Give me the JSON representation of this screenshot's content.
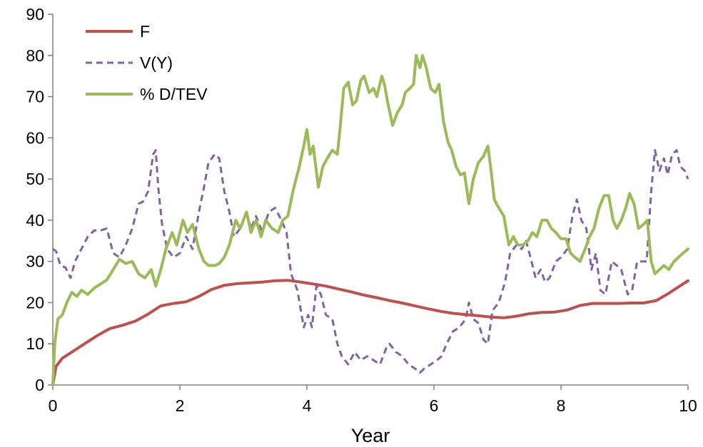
{
  "chart_data": {
    "type": "line",
    "title": "",
    "xlabel": "Year",
    "ylabel": "",
    "xlim": [
      0,
      10
    ],
    "ylim": [
      0,
      90
    ],
    "xticks": [
      0,
      2,
      4,
      6,
      8,
      10
    ],
    "yticks": [
      0,
      10,
      20,
      30,
      40,
      50,
      60,
      70,
      80,
      90
    ],
    "grid": false,
    "legend_position": "top-left",
    "series": [
      {
        "name": "F",
        "color": "#c0504d",
        "style": "solid",
        "points": [
          [
            0,
            0
          ],
          [
            0.05,
            4.5
          ],
          [
            0.15,
            6.5
          ],
          [
            0.3,
            8
          ],
          [
            0.5,
            10
          ],
          [
            0.7,
            12
          ],
          [
            0.9,
            13.7
          ],
          [
            1.1,
            14.5
          ],
          [
            1.3,
            15.5
          ],
          [
            1.5,
            17.2
          ],
          [
            1.7,
            19.2
          ],
          [
            1.9,
            19.8
          ],
          [
            2.1,
            20.2
          ],
          [
            2.3,
            21.5
          ],
          [
            2.5,
            23.2
          ],
          [
            2.7,
            24.2
          ],
          [
            2.9,
            24.6
          ],
          [
            3.1,
            24.8
          ],
          [
            3.3,
            25
          ],
          [
            3.5,
            25.3
          ],
          [
            3.7,
            25.4
          ],
          [
            3.9,
            25
          ],
          [
            4.1,
            24.5
          ],
          [
            4.3,
            24
          ],
          [
            4.5,
            23.3
          ],
          [
            4.7,
            22.6
          ],
          [
            4.9,
            21.8
          ],
          [
            5.1,
            21.2
          ],
          [
            5.3,
            20.5
          ],
          [
            5.5,
            19.9
          ],
          [
            5.7,
            19.2
          ],
          [
            5.9,
            18.5
          ],
          [
            6.1,
            17.9
          ],
          [
            6.3,
            17.4
          ],
          [
            6.5,
            17.1
          ],
          [
            6.7,
            16.8
          ],
          [
            6.9,
            16.5
          ],
          [
            7.1,
            16.3
          ],
          [
            7.3,
            16.7
          ],
          [
            7.5,
            17.3
          ],
          [
            7.7,
            17.6
          ],
          [
            7.9,
            17.7
          ],
          [
            8.1,
            18.2
          ],
          [
            8.3,
            19.3
          ],
          [
            8.5,
            19.8
          ],
          [
            8.7,
            19.8
          ],
          [
            8.9,
            19.8
          ],
          [
            9.1,
            19.9
          ],
          [
            9.3,
            19.9
          ],
          [
            9.5,
            20.5
          ],
          [
            9.7,
            22.3
          ],
          [
            9.9,
            24.3
          ],
          [
            10,
            25.3
          ]
        ]
      },
      {
        "name": "V(Y)",
        "color": "#8064a2",
        "style": "dashed",
        "points": [
          [
            0,
            33
          ],
          [
            0.05,
            32.5
          ],
          [
            0.12,
            29
          ],
          [
            0.2,
            28.5
          ],
          [
            0.28,
            26
          ],
          [
            0.35,
            30
          ],
          [
            0.45,
            33
          ],
          [
            0.55,
            36
          ],
          [
            0.65,
            37.5
          ],
          [
            0.75,
            37.5
          ],
          [
            0.85,
            38
          ],
          [
            0.95,
            32
          ],
          [
            1.05,
            31
          ],
          [
            1.15,
            34
          ],
          [
            1.25,
            38
          ],
          [
            1.35,
            44
          ],
          [
            1.42,
            44.5
          ],
          [
            1.5,
            47
          ],
          [
            1.58,
            56
          ],
          [
            1.62,
            57
          ],
          [
            1.66,
            48
          ],
          [
            1.72,
            39
          ],
          [
            1.8,
            33
          ],
          [
            1.9,
            31
          ],
          [
            2.0,
            32
          ],
          [
            2.1,
            36
          ],
          [
            2.2,
            33
          ],
          [
            2.3,
            42
          ],
          [
            2.38,
            48
          ],
          [
            2.45,
            54
          ],
          [
            2.55,
            56
          ],
          [
            2.62,
            55
          ],
          [
            2.7,
            47
          ],
          [
            2.78,
            42
          ],
          [
            2.85,
            36
          ],
          [
            2.95,
            38
          ],
          [
            3.05,
            42
          ],
          [
            3.12,
            38
          ],
          [
            3.2,
            41
          ],
          [
            3.3,
            37
          ],
          [
            3.4,
            42
          ],
          [
            3.5,
            43
          ],
          [
            3.6,
            40
          ],
          [
            3.68,
            37
          ],
          [
            3.75,
            27
          ],
          [
            3.85,
            23
          ],
          [
            3.95,
            14
          ],
          [
            4.02,
            17
          ],
          [
            4.08,
            14
          ],
          [
            4.15,
            24
          ],
          [
            4.22,
            22
          ],
          [
            4.3,
            17
          ],
          [
            4.4,
            16
          ],
          [
            4.48,
            10
          ],
          [
            4.55,
            7
          ],
          [
            4.65,
            5
          ],
          [
            4.75,
            8
          ],
          [
            4.85,
            6
          ],
          [
            4.95,
            7
          ],
          [
            5.05,
            6
          ],
          [
            5.15,
            5
          ],
          [
            5.25,
            9
          ],
          [
            5.3,
            10
          ],
          [
            5.4,
            8
          ],
          [
            5.5,
            7
          ],
          [
            5.6,
            5
          ],
          [
            5.7,
            4
          ],
          [
            5.78,
            3
          ],
          [
            5.85,
            4
          ],
          [
            5.95,
            5
          ],
          [
            6.05,
            6
          ],
          [
            6.12,
            7
          ],
          [
            6.2,
            10
          ],
          [
            6.3,
            13
          ],
          [
            6.4,
            14
          ],
          [
            6.5,
            16
          ],
          [
            6.55,
            20
          ],
          [
            6.62,
            16
          ],
          [
            6.7,
            15
          ],
          [
            6.78,
            11
          ],
          [
            6.85,
            10
          ],
          [
            6.92,
            18
          ],
          [
            7.02,
            20
          ],
          [
            7.12,
            25
          ],
          [
            7.2,
            32
          ],
          [
            7.3,
            34
          ],
          [
            7.38,
            33
          ],
          [
            7.45,
            35
          ],
          [
            7.52,
            31
          ],
          [
            7.6,
            26
          ],
          [
            7.68,
            28
          ],
          [
            7.75,
            25
          ],
          [
            7.82,
            26
          ],
          [
            7.92,
            30
          ],
          [
            8.0,
            31
          ],
          [
            8.1,
            33
          ],
          [
            8.18,
            41
          ],
          [
            8.25,
            45
          ],
          [
            8.32,
            40
          ],
          [
            8.4,
            38
          ],
          [
            8.48,
            28
          ],
          [
            8.55,
            32
          ],
          [
            8.62,
            23
          ],
          [
            8.7,
            22
          ],
          [
            8.8,
            30
          ],
          [
            8.88,
            29
          ],
          [
            8.95,
            28
          ],
          [
            9.05,
            22
          ],
          [
            9.12,
            23
          ],
          [
            9.2,
            30
          ],
          [
            9.28,
            30
          ],
          [
            9.35,
            30
          ],
          [
            9.42,
            47
          ],
          [
            9.48,
            57
          ],
          [
            9.55,
            52
          ],
          [
            9.62,
            55
          ],
          [
            9.68,
            51
          ],
          [
            9.75,
            56
          ],
          [
            9.82,
            57
          ],
          [
            9.88,
            53
          ],
          [
            9.95,
            52
          ],
          [
            10,
            50
          ]
        ]
      },
      {
        "name": "% D/TEV",
        "color": "#9bbb59",
        "style": "solid",
        "points": [
          [
            0,
            0
          ],
          [
            0.03,
            10
          ],
          [
            0.08,
            16
          ],
          [
            0.15,
            17
          ],
          [
            0.22,
            20
          ],
          [
            0.3,
            22.5
          ],
          [
            0.38,
            21.5
          ],
          [
            0.45,
            23
          ],
          [
            0.55,
            22
          ],
          [
            0.65,
            23.5
          ],
          [
            0.75,
            24.5
          ],
          [
            0.85,
            25.5
          ],
          [
            0.95,
            28
          ],
          [
            1.05,
            30.5
          ],
          [
            1.15,
            29.5
          ],
          [
            1.25,
            30
          ],
          [
            1.35,
            27
          ],
          [
            1.45,
            26
          ],
          [
            1.55,
            28
          ],
          [
            1.62,
            24
          ],
          [
            1.7,
            28
          ],
          [
            1.78,
            33
          ],
          [
            1.88,
            37
          ],
          [
            1.95,
            34
          ],
          [
            2.05,
            40
          ],
          [
            2.12,
            37
          ],
          [
            2.2,
            39
          ],
          [
            2.3,
            33
          ],
          [
            2.38,
            30
          ],
          [
            2.45,
            29
          ],
          [
            2.55,
            29
          ],
          [
            2.62,
            29.5
          ],
          [
            2.7,
            31
          ],
          [
            2.78,
            34
          ],
          [
            2.88,
            40
          ],
          [
            2.95,
            38
          ],
          [
            3.05,
            42
          ],
          [
            3.12,
            37
          ],
          [
            3.2,
            40
          ],
          [
            3.28,
            36
          ],
          [
            3.35,
            40
          ],
          [
            3.45,
            38
          ],
          [
            3.55,
            37
          ],
          [
            3.62,
            40
          ],
          [
            3.7,
            41
          ],
          [
            3.78,
            47
          ],
          [
            3.88,
            53
          ],
          [
            3.95,
            58
          ],
          [
            4.0,
            62
          ],
          [
            4.05,
            56
          ],
          [
            4.1,
            58
          ],
          [
            4.18,
            48
          ],
          [
            4.25,
            53
          ],
          [
            4.32,
            55
          ],
          [
            4.4,
            57
          ],
          [
            4.48,
            56
          ],
          [
            4.52,
            62
          ],
          [
            4.58,
            72
          ],
          [
            4.65,
            73.5
          ],
          [
            4.72,
            68
          ],
          [
            4.78,
            69
          ],
          [
            4.85,
            74
          ],
          [
            4.9,
            75
          ],
          [
            4.98,
            71
          ],
          [
            5.05,
            72
          ],
          [
            5.1,
            70
          ],
          [
            5.18,
            75
          ],
          [
            5.22,
            73
          ],
          [
            5.28,
            68
          ],
          [
            5.35,
            63
          ],
          [
            5.42,
            66
          ],
          [
            5.5,
            68
          ],
          [
            5.55,
            71
          ],
          [
            5.62,
            72
          ],
          [
            5.68,
            73
          ],
          [
            5.72,
            80
          ],
          [
            5.78,
            77
          ],
          [
            5.82,
            80
          ],
          [
            5.88,
            77
          ],
          [
            5.95,
            72
          ],
          [
            6.02,
            71
          ],
          [
            6.08,
            73
          ],
          [
            6.15,
            64
          ],
          [
            6.22,
            59
          ],
          [
            6.28,
            57
          ],
          [
            6.35,
            53
          ],
          [
            6.42,
            51
          ],
          [
            6.48,
            51.5
          ],
          [
            6.55,
            44
          ],
          [
            6.62,
            50
          ],
          [
            6.7,
            54
          ],
          [
            6.78,
            55.5
          ],
          [
            6.85,
            58
          ],
          [
            6.9,
            52
          ],
          [
            6.95,
            45
          ],
          [
            7.02,
            43
          ],
          [
            7.1,
            41
          ],
          [
            7.18,
            34
          ],
          [
            7.25,
            36
          ],
          [
            7.32,
            34
          ],
          [
            7.4,
            34
          ],
          [
            7.48,
            35
          ],
          [
            7.55,
            37
          ],
          [
            7.62,
            36
          ],
          [
            7.7,
            40
          ],
          [
            7.78,
            40
          ],
          [
            7.85,
            38
          ],
          [
            7.92,
            37
          ],
          [
            8.0,
            35.5
          ],
          [
            8.08,
            35.5
          ],
          [
            8.15,
            32
          ],
          [
            8.22,
            31
          ],
          [
            8.3,
            30
          ],
          [
            8.38,
            33
          ],
          [
            8.45,
            36
          ],
          [
            8.52,
            38
          ],
          [
            8.6,
            43
          ],
          [
            8.68,
            46
          ],
          [
            8.75,
            46
          ],
          [
            8.82,
            40
          ],
          [
            8.88,
            38
          ],
          [
            8.95,
            40
          ],
          [
            9.02,
            43
          ],
          [
            9.08,
            46.5
          ],
          [
            9.15,
            44
          ],
          [
            9.22,
            38
          ],
          [
            9.3,
            39
          ],
          [
            9.36,
            40
          ],
          [
            9.42,
            30
          ],
          [
            9.48,
            27
          ],
          [
            9.55,
            28
          ],
          [
            9.62,
            29
          ],
          [
            9.7,
            28
          ],
          [
            9.78,
            30
          ],
          [
            9.85,
            31
          ],
          [
            9.92,
            32
          ],
          [
            10,
            33
          ]
        ]
      }
    ]
  }
}
